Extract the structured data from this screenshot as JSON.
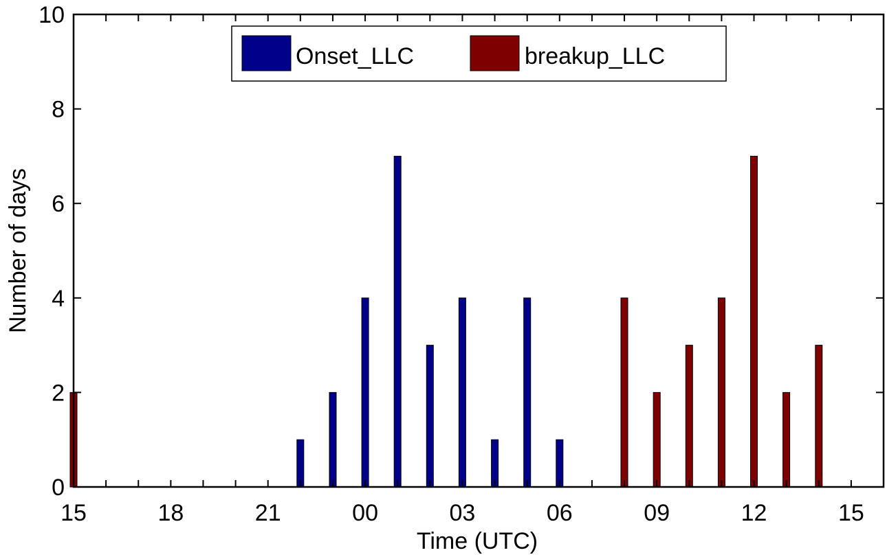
{
  "chart_data": {
    "type": "bar",
    "xlabel": "Time (UTC)",
    "ylabel": "Number of days",
    "xlim": [
      15,
      16
    ],
    "ylim": [
      0,
      10
    ],
    "x_tick_labels": [
      "15",
      "18",
      "21",
      "00",
      "03",
      "06",
      "09",
      "12",
      "15"
    ],
    "y_ticks": [
      0,
      2,
      4,
      6,
      8,
      10
    ],
    "legend_position": "top-center",
    "grid": false,
    "series": [
      {
        "name": "Onset_LLC",
        "color": "#00008b",
        "x": [
          "22",
          "23",
          "00",
          "01",
          "02",
          "03",
          "04",
          "05",
          "06"
        ],
        "values": [
          1,
          2,
          4,
          7,
          3,
          4,
          1,
          4,
          1
        ]
      },
      {
        "name": "breakup_LLC",
        "color": "#7f0000",
        "x": [
          "08",
          "09",
          "10",
          "11",
          "12",
          "13",
          "14",
          "15"
        ],
        "values": [
          4,
          2,
          3,
          4,
          7,
          2,
          3,
          2
        ]
      }
    ]
  }
}
